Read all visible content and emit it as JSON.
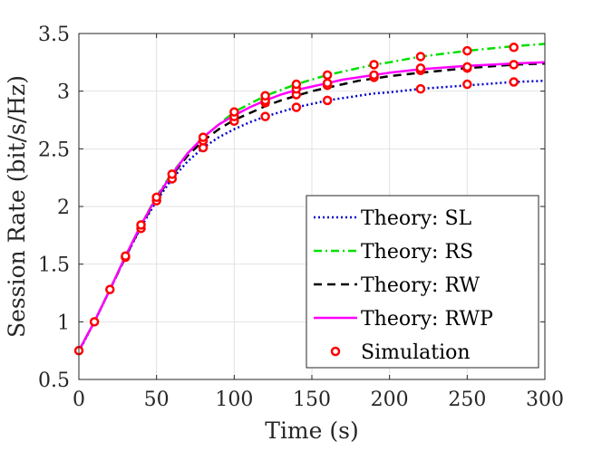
{
  "chart_data": {
    "type": "line",
    "title": "",
    "xlabel": "Time (s)",
    "ylabel": "Session Rate (bit/s/Hz)",
    "xlim": [
      0,
      300
    ],
    "ylim": [
      0.5,
      3.5
    ],
    "xticks": [
      0,
      50,
      100,
      150,
      200,
      250,
      300
    ],
    "yticks": [
      0.5,
      1,
      1.5,
      2,
      2.5,
      3,
      3.5
    ],
    "xtick_labels": [
      "0",
      "50",
      "100",
      "150",
      "200",
      "250",
      "300"
    ],
    "ytick_labels": [
      "0.5",
      "1",
      "1.5",
      "2",
      "2.5",
      "3",
      "3.5"
    ],
    "grid": true,
    "legend_position": "bottom-right",
    "colors": {
      "SL": "#0000cc",
      "RS": "#00e000",
      "RW": "#000000",
      "RWP": "#ff00ff",
      "Simulation": "#ff0000"
    },
    "series": [
      {
        "key": "SL",
        "name": "Theory: SL",
        "style": "dotted",
        "x": [
          0,
          10,
          20,
          30,
          40,
          50,
          60,
          70,
          80,
          90,
          100,
          110,
          120,
          130,
          140,
          150,
          160,
          170,
          180,
          190,
          200,
          220,
          250,
          280,
          300
        ],
        "y": [
          0.74,
          1.0,
          1.28,
          1.56,
          1.82,
          2.05,
          2.24,
          2.39,
          2.51,
          2.6,
          2.67,
          2.73,
          2.78,
          2.82,
          2.86,
          2.89,
          2.92,
          2.94,
          2.96,
          2.98,
          2.99,
          3.02,
          3.05,
          3.08,
          3.09
        ]
      },
      {
        "key": "RS",
        "name": "Theory: RS",
        "style": "dashdot",
        "x": [
          0,
          10,
          20,
          30,
          40,
          50,
          60,
          70,
          80,
          90,
          100,
          110,
          120,
          130,
          140,
          150,
          160,
          170,
          180,
          190,
          200,
          220,
          250,
          280,
          300
        ],
        "y": [
          0.75,
          1.0,
          1.28,
          1.57,
          1.84,
          2.09,
          2.29,
          2.46,
          2.6,
          2.71,
          2.82,
          2.89,
          2.96,
          3.01,
          3.06,
          3.1,
          3.14,
          3.17,
          3.2,
          3.23,
          3.25,
          3.3,
          3.35,
          3.39,
          3.41
        ]
      },
      {
        "key": "RW",
        "name": "Theory: RW",
        "style": "dashed",
        "x": [
          0,
          10,
          20,
          30,
          40,
          50,
          60,
          70,
          80,
          90,
          100,
          110,
          120,
          130,
          140,
          150,
          160,
          170,
          180,
          190,
          200,
          220,
          250,
          280,
          300
        ],
        "y": [
          0.75,
          1.0,
          1.28,
          1.56,
          1.83,
          2.07,
          2.27,
          2.44,
          2.57,
          2.67,
          2.75,
          2.81,
          2.87,
          2.92,
          2.96,
          3.0,
          3.03,
          3.06,
          3.09,
          3.11,
          3.13,
          3.16,
          3.2,
          3.23,
          3.24
        ]
      },
      {
        "key": "RWP",
        "name": "Theory: RWP",
        "style": "solid",
        "x": [
          0,
          10,
          20,
          30,
          40,
          50,
          60,
          70,
          80,
          90,
          100,
          110,
          120,
          130,
          140,
          150,
          160,
          170,
          180,
          190,
          200,
          220,
          250,
          280,
          300
        ],
        "y": [
          0.75,
          1.0,
          1.28,
          1.57,
          1.84,
          2.08,
          2.28,
          2.46,
          2.6,
          2.71,
          2.79,
          2.86,
          2.92,
          2.97,
          3.01,
          3.04,
          3.07,
          3.1,
          3.12,
          3.14,
          3.16,
          3.19,
          3.22,
          3.24,
          3.25
        ]
      }
    ],
    "simulation": {
      "key": "Simulation",
      "name": "Simulation",
      "points": [
        [
          0,
          0.75
        ],
        [
          10,
          1.0
        ],
        [
          20,
          1.28
        ],
        [
          30,
          1.56
        ],
        [
          30,
          1.57
        ],
        [
          40,
          1.81
        ],
        [
          40,
          1.84
        ],
        [
          50,
          2.05
        ],
        [
          50,
          2.08
        ],
        [
          60,
          2.24
        ],
        [
          60,
          2.28
        ],
        [
          80,
          2.51
        ],
        [
          80,
          2.57
        ],
        [
          80,
          2.6
        ],
        [
          100,
          2.74
        ],
        [
          100,
          2.78
        ],
        [
          100,
          2.82
        ],
        [
          120,
          2.78
        ],
        [
          120,
          2.9
        ],
        [
          120,
          2.92
        ],
        [
          120,
          2.96
        ],
        [
          140,
          2.86
        ],
        [
          140,
          2.97
        ],
        [
          140,
          3.02
        ],
        [
          140,
          3.06
        ],
        [
          160,
          2.92
        ],
        [
          160,
          3.05
        ],
        [
          160,
          3.07
        ],
        [
          160,
          3.14
        ],
        [
          190,
          3.12
        ],
        [
          190,
          3.14
        ],
        [
          190,
          3.23
        ],
        [
          220,
          3.02
        ],
        [
          220,
          3.18
        ],
        [
          220,
          3.2
        ],
        [
          220,
          3.3
        ],
        [
          250,
          3.06
        ],
        [
          250,
          3.2
        ],
        [
          250,
          3.21
        ],
        [
          250,
          3.35
        ],
        [
          280,
          3.08
        ],
        [
          280,
          3.23
        ],
        [
          280,
          3.38
        ]
      ]
    }
  }
}
